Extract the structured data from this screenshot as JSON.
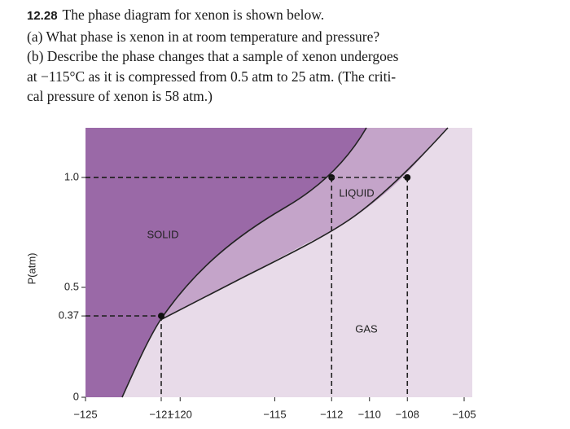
{
  "problem": {
    "number": "12.28",
    "lines": [
      "The phase diagram for xenon is shown below.",
      "(a) What phase is xenon in at room temperature and pressure?",
      "(b) Describe the phase changes that a sample of xenon undergoes",
      "at −115°C as it is compressed from 0.5 atm to 25 atm. (The criti-",
      "cal pressure of xenon is 58 atm.)"
    ]
  },
  "diagram": {
    "y_label": "P(atm)",
    "regions": [
      "SOLID",
      "LIQUID",
      "GAS"
    ],
    "xlim": [
      -125,
      -105
    ],
    "ylim": [
      0,
      1.2
    ],
    "xticks": [
      {
        "value": -125,
        "label": "−125"
      },
      {
        "value": -121,
        "label": "−121"
      },
      {
        "value": -120,
        "label": "−120"
      },
      {
        "value": -115,
        "label": "−115"
      },
      {
        "value": -112,
        "label": "−112"
      },
      {
        "value": -110,
        "label": "−110"
      },
      {
        "value": -108,
        "label": "−108"
      },
      {
        "value": -105,
        "label": "−105"
      }
    ],
    "yticks": [
      {
        "value": 1,
        "label": "1.0"
      },
      0.5,
      0.37,
      0
    ],
    "points": {
      "x": [
        -121,
        -112,
        -108
      ],
      "y": [
        0.37,
        1,
        1
      ]
    }
  }
}
